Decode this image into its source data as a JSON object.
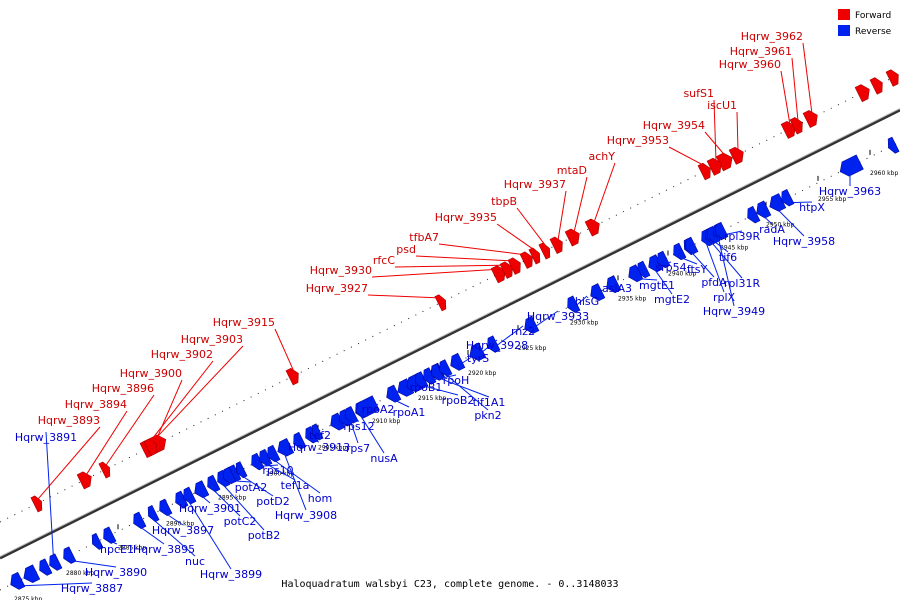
{
  "caption": "Haloquadratum walsbyi C23, complete genome. - 0..3148033",
  "legend": {
    "forward_label": "Forward",
    "reverse_label": "Reverse",
    "forward_color": "#ee0000",
    "reverse_color": "#0022ee"
  },
  "ticks": [
    "2875 kbp",
    "2880 kbp",
    "2885 kbp",
    "2890 kbp",
    "2895 kbp",
    "2900 kbp",
    "2905 kbp",
    "2910 kbp",
    "2915 kbp",
    "2920 kbp",
    "2925 kbp",
    "2930 kbp",
    "2935 kbp",
    "2940 kbp",
    "2945 kbp",
    "2950 kbp",
    "2955 kbp",
    "2960 kbp"
  ],
  "forward_genes": [
    "Hqrw_3893",
    "Hqrw_3894",
    "Hqrw_3896",
    "Hqrw_3900",
    "Hqrw_3902",
    "Hqrw_3903",
    "Hqrw_3915",
    "Hqrw_3927",
    "Hqrw_3930",
    "rfcC",
    "psd",
    "tfbA7",
    "Hqrw_3935",
    "tbpB",
    "Hqrw_3937",
    "mtaD",
    "achY",
    "Hqrw_3953",
    "Hqrw_3954",
    "sufS1",
    "iscU1",
    "Hqrw_3960",
    "Hqrw_3961",
    "Hqrw_3962"
  ],
  "reverse_genes": [
    "Hqrw_3891",
    "Hqrw_3887",
    "Hqrw_3890",
    "hpcE1",
    "Hqrw_3895",
    "nuc",
    "Hqrw_3899",
    "Hqrw_3897",
    "Hqrw_3901",
    "potC2",
    "potB2",
    "potA2",
    "potD2",
    "rps10",
    "tef1a",
    "hom",
    "Hqrw_3908",
    "Hqrw_3913",
    "tef2",
    "rps12",
    "rps7",
    "nusA",
    "rpoA2",
    "rpoA1",
    "rpoB1",
    "rpoB2",
    "rpoH",
    "tif1A1",
    "pkn2",
    "tyrS",
    "Hqrw_3928",
    "rnz2",
    "Hqrw_3933",
    "hisG",
    "aslA3",
    "mgtE1",
    "mgtE2",
    "srp54",
    "ftsY",
    "pfdA",
    "rplX",
    "rpl31R",
    "tif6",
    "Hqrw_3949",
    "rpl39R",
    "radA",
    "Hqrw_3958",
    "htpX",
    "Hqrw_3963"
  ]
}
